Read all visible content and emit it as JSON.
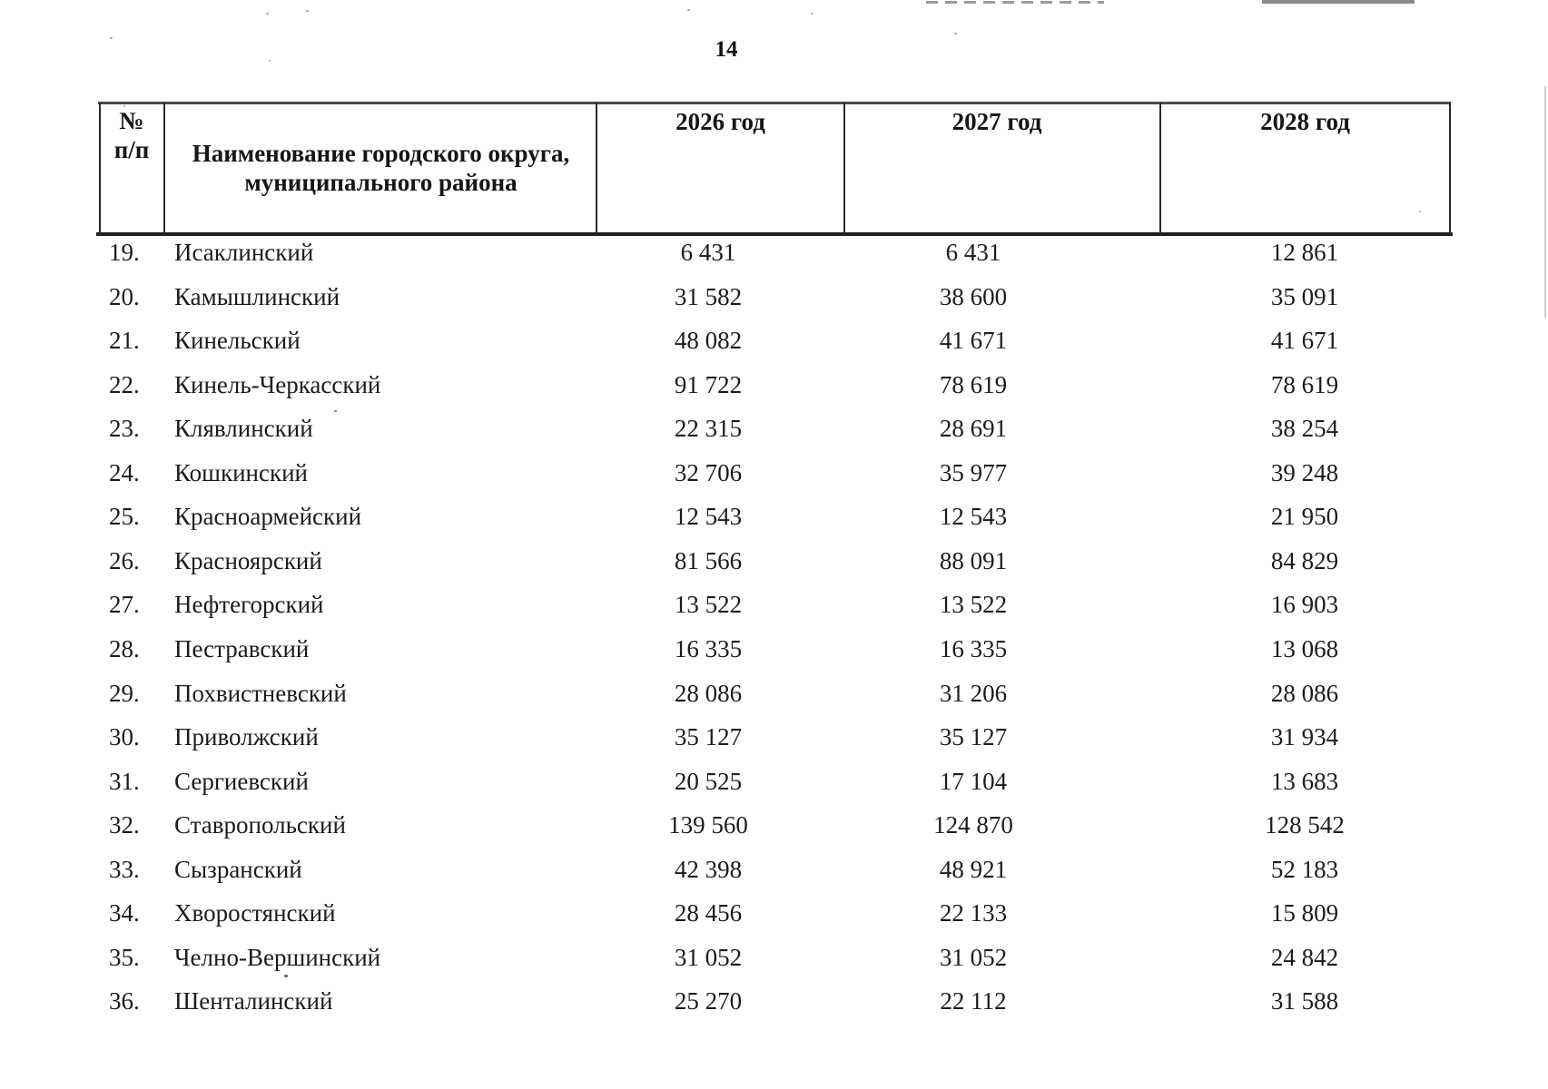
{
  "page": {
    "number": "14"
  },
  "table": {
    "header": {
      "col_num_line1": "№",
      "col_num_line2": "п/п",
      "col_name_line1": "Наименование городского округа,",
      "col_name_line2": "муниципального района",
      "col_2026": "2026 год",
      "col_2027": "2027 год",
      "col_2028": "2028 год"
    },
    "rows": [
      {
        "num": "19.",
        "name": "Исаклинский",
        "y2026": "6 431",
        "y2027": "6 431",
        "y2028": "12 861"
      },
      {
        "num": "20.",
        "name": "Камышлинский",
        "y2026": "31 582",
        "y2027": "38 600",
        "y2028": "35 091"
      },
      {
        "num": "21.",
        "name": "Кинельский",
        "y2026": "48 082",
        "y2027": "41 671",
        "y2028": "41 671"
      },
      {
        "num": "22.",
        "name": "Кинель-Черкасский",
        "y2026": "91 722",
        "y2027": "78 619",
        "y2028": "78 619"
      },
      {
        "num": "23.",
        "name": "Клявлинский",
        "y2026": "22 315",
        "y2027": "28 691",
        "y2028": "38 254"
      },
      {
        "num": "24.",
        "name": "Кошкинский",
        "y2026": "32 706",
        "y2027": "35 977",
        "y2028": "39 248"
      },
      {
        "num": "25.",
        "name": "Красноармейский",
        "y2026": "12 543",
        "y2027": "12 543",
        "y2028": "21 950"
      },
      {
        "num": "26.",
        "name": "Красноярский",
        "y2026": "81 566",
        "y2027": "88 091",
        "y2028": "84 829"
      },
      {
        "num": "27.",
        "name": "Нефтегорский",
        "y2026": "13 522",
        "y2027": "13 522",
        "y2028": "16 903"
      },
      {
        "num": "28.",
        "name": "Пестравский",
        "y2026": "16 335",
        "y2027": "16 335",
        "y2028": "13 068"
      },
      {
        "num": "29.",
        "name": "Похвистневский",
        "y2026": "28 086",
        "y2027": "31 206",
        "y2028": "28 086"
      },
      {
        "num": "30.",
        "name": "Приволжский",
        "y2026": "35 127",
        "y2027": "35 127",
        "y2028": "31 934"
      },
      {
        "num": "31.",
        "name": "Сергиевский",
        "y2026": "20 525",
        "y2027": "17 104",
        "y2028": "13 683"
      },
      {
        "num": "32.",
        "name": "Ставропольский",
        "y2026": "139 560",
        "y2027": "124 870",
        "y2028": "128 542"
      },
      {
        "num": "33.",
        "name": "Сызранский",
        "y2026": "42 398",
        "y2027": "48 921",
        "y2028": "52 183"
      },
      {
        "num": "34.",
        "name": "Хворостянский",
        "y2026": "28 456",
        "y2027": "22 133",
        "y2028": "15 809"
      },
      {
        "num": "35.",
        "name": "Челно-Вершинский",
        "y2026": "31 052",
        "y2027": "31 052",
        "y2028": "24 842"
      },
      {
        "num": "36.",
        "name": "Шенталинский",
        "y2026": "25 270",
        "y2027": "22 112",
        "y2028": "31 588"
      }
    ]
  }
}
